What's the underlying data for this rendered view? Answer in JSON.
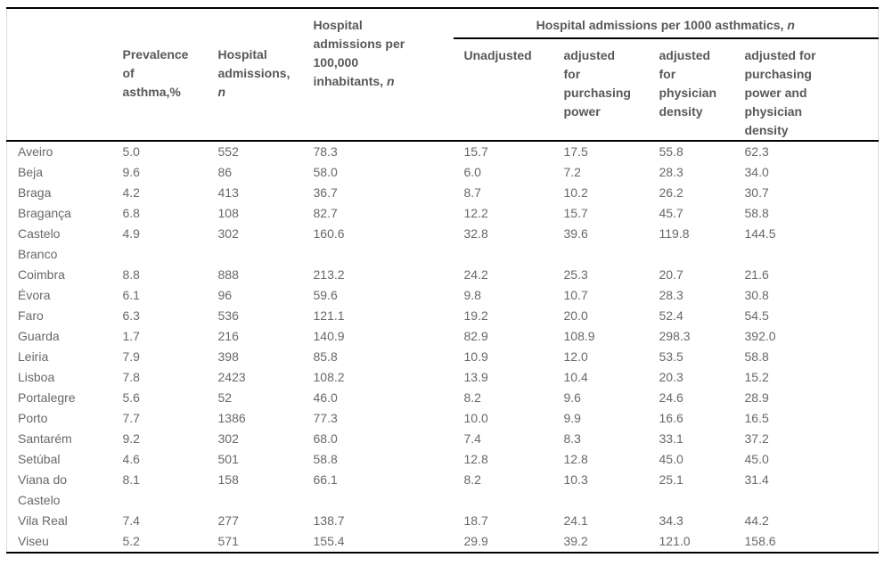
{
  "table": {
    "header": {
      "col1_label": "Prevalence\nof\nasthma,%",
      "col2_label": "Hospital\nadmissions,",
      "col2_n": "n",
      "col3_label": "Hospital\nadmissions per\n100,000\ninhabitants,",
      "col3_n": "n",
      "span_label": "Hospital admissions per 1000 asthmatics,",
      "span_n": "n",
      "sub_unadjusted": "Unadjusted",
      "sub_purchasing": "adjusted\nfor\npurchasing\npower",
      "sub_physician": "adjusted\nfor\nphysician\ndensity",
      "sub_both": "adjusted for\npurchasing\npower and\nphysician\ndensity"
    },
    "rows": [
      {
        "name": "Aveiro",
        "values": [
          "5.0",
          "552",
          "78.3",
          "15.7",
          "17.5",
          "55.8",
          "62.3"
        ]
      },
      {
        "name": "Beja",
        "values": [
          "9.6",
          "86",
          "58.0",
          "6.0",
          "7.2",
          "28.3",
          "34.0"
        ]
      },
      {
        "name": "Braga",
        "values": [
          "4.2",
          "413",
          "36.7",
          "8.7",
          "10.2",
          "26.2",
          "30.7"
        ]
      },
      {
        "name": "Bragança",
        "values": [
          "6.8",
          "108",
          "82.7",
          "12.2",
          "15.7",
          "45.7",
          "58.8"
        ]
      },
      {
        "name": "Castelo\nBranco",
        "values": [
          "4.9",
          "302",
          "160.6",
          "32.8",
          "39.6",
          "119.8",
          "144.5"
        ]
      },
      {
        "name": "Coimbra",
        "values": [
          "8.8",
          "888",
          "213.2",
          "24.2",
          "25.3",
          "20.7",
          "21.6"
        ]
      },
      {
        "name": "Évora",
        "values": [
          "6.1",
          "96",
          "59.6",
          "9.8",
          "10.7",
          "28.3",
          "30.8"
        ]
      },
      {
        "name": "Faro",
        "values": [
          "6.3",
          "536",
          "121.1",
          "19.2",
          "20.0",
          "52.4",
          "54.5"
        ]
      },
      {
        "name": "Guarda",
        "values": [
          "1.7",
          "216",
          "140.9",
          "82.9",
          "108.9",
          "298.3",
          "392.0"
        ]
      },
      {
        "name": "Leiria",
        "values": [
          "7.9",
          "398",
          "85.8",
          "10.9",
          "12.0",
          "53.5",
          "58.8"
        ]
      },
      {
        "name": "Lisboa",
        "values": [
          "7.8",
          "2423",
          "108.2",
          "13.9",
          "10.4",
          "20.3",
          "15.2"
        ]
      },
      {
        "name": "Portalegre",
        "values": [
          "5.6",
          "52",
          "46.0",
          "8.2",
          "9.6",
          "24.6",
          "28.9"
        ]
      },
      {
        "name": "Porto",
        "values": [
          "7.7",
          "1386",
          "77.3",
          "10.0",
          "9.9",
          "16.6",
          "16.5"
        ]
      },
      {
        "name": "Santarém",
        "values": [
          "9.2",
          "302",
          "68.0",
          "7.4",
          "8.3",
          "33.1",
          "37.2"
        ]
      },
      {
        "name": "Setúbal",
        "values": [
          "4.6",
          "501",
          "58.8",
          "12.8",
          "12.8",
          "45.0",
          "45.0"
        ]
      },
      {
        "name": "Viana do\nCastelo",
        "values": [
          "8.1",
          "158",
          "66.1",
          "8.2",
          "10.3",
          "25.1",
          "31.4"
        ]
      },
      {
        "name": "Vila Real",
        "values": [
          "7.4",
          "277",
          "138.7",
          "18.7",
          "24.1",
          "34.3",
          "44.2"
        ]
      },
      {
        "name": "Viseu",
        "values": [
          "5.2",
          "571",
          "155.4",
          "29.9",
          "39.2",
          "121.0",
          "158.6"
        ]
      }
    ]
  },
  "colors": {
    "header_text": "#58585a",
    "body_text": "#686868",
    "rule": "#000000",
    "edge_border": "#d9d9d9"
  }
}
